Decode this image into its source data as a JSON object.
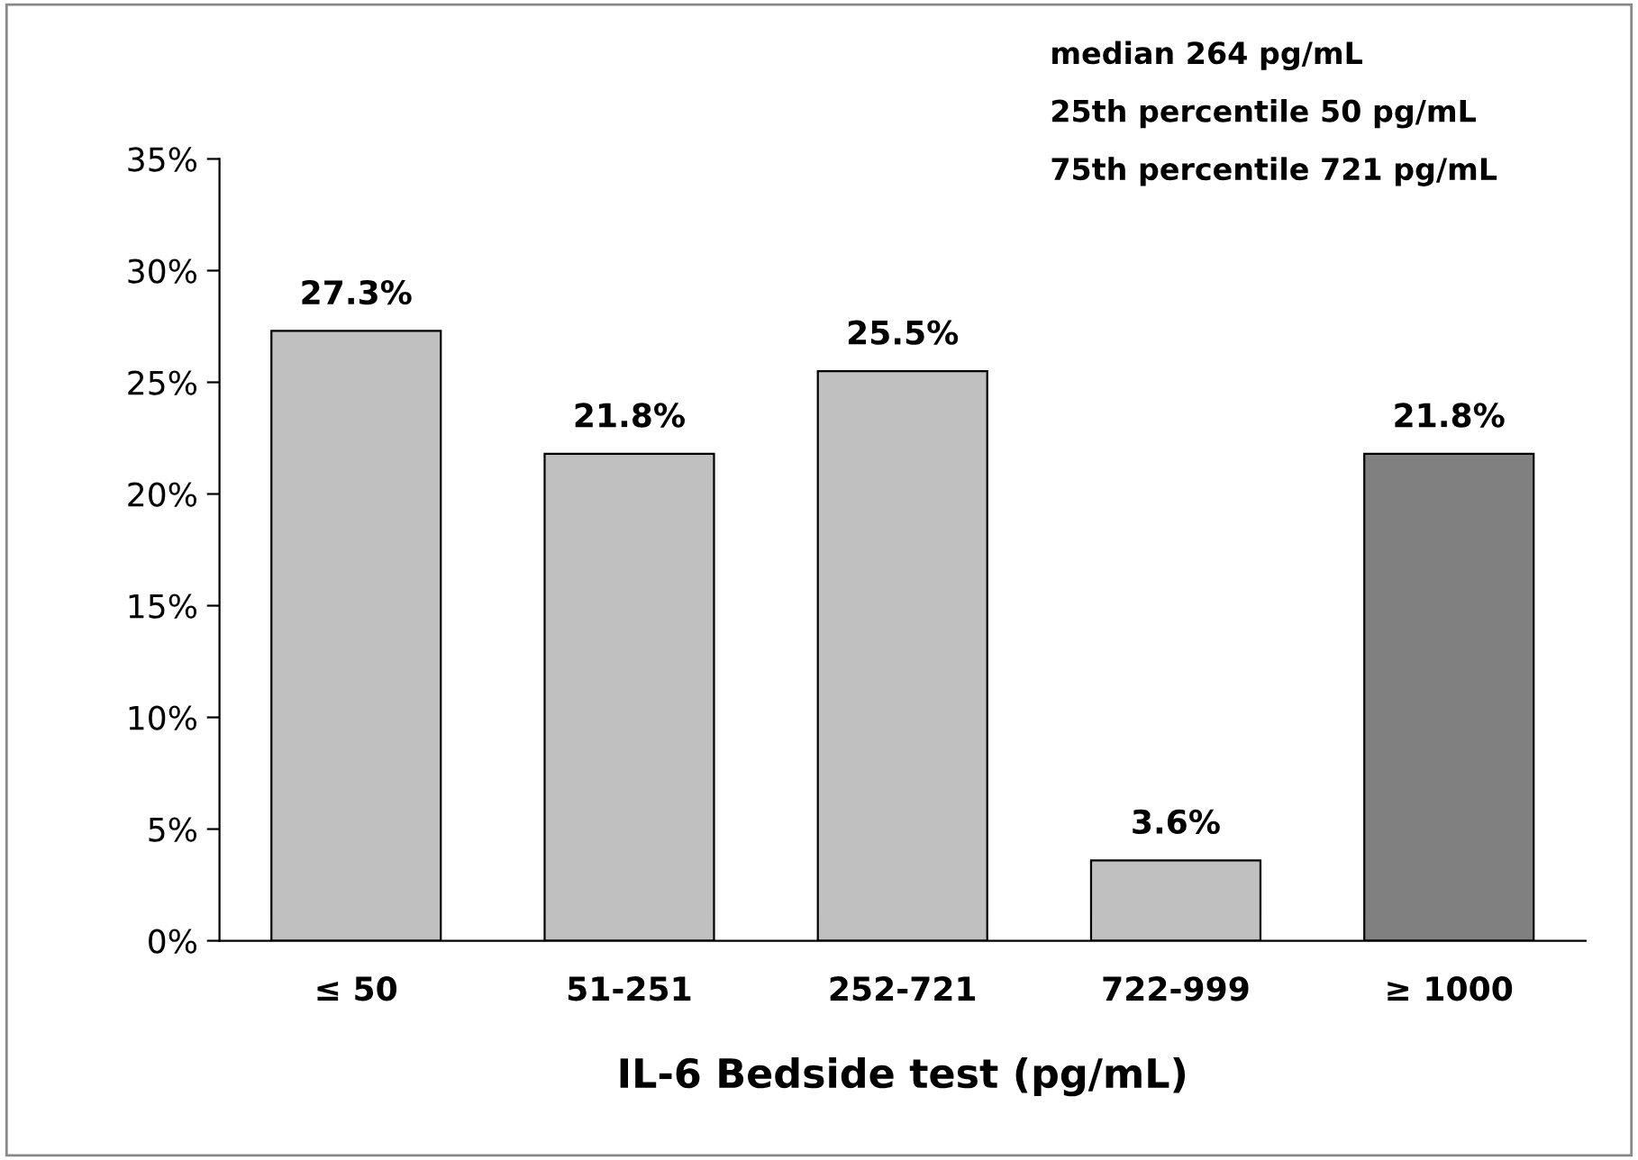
{
  "chart_data": {
    "type": "bar",
    "xlabel": "IL-6 Bedside test (pg/mL)",
    "categories": [
      "≤ 50",
      "51-251",
      "252-721",
      "722-999",
      "≥ 1000"
    ],
    "values": [
      27.3,
      21.8,
      25.5,
      3.6,
      21.8
    ],
    "colors": [
      "#c0c0c0",
      "#c0c0c0",
      "#c0c0c0",
      "#c0c0c0",
      "#808080"
    ],
    "value_labels": [
      "27.3%",
      "21.8%",
      "25.5%",
      "3.6%",
      "21.8%"
    ],
    "ylim": [
      0,
      35
    ],
    "yticks": [
      {
        "value": 0,
        "label": "0%"
      },
      {
        "value": 5,
        "label": "5%"
      },
      {
        "value": 10,
        "label": "10%"
      },
      {
        "value": 15,
        "label": "15%"
      },
      {
        "value": 20,
        "label": "20%"
      },
      {
        "value": 25,
        "label": "25%"
      },
      {
        "value": 30,
        "label": "30%"
      },
      {
        "value": 35,
        "label": "35%"
      }
    ],
    "annotations": [
      "median 264 pg/mL",
      "25th percentile 50 pg/mL",
      "75th percentile 721 pg/mL"
    ],
    "grid": false,
    "legend": false
  }
}
